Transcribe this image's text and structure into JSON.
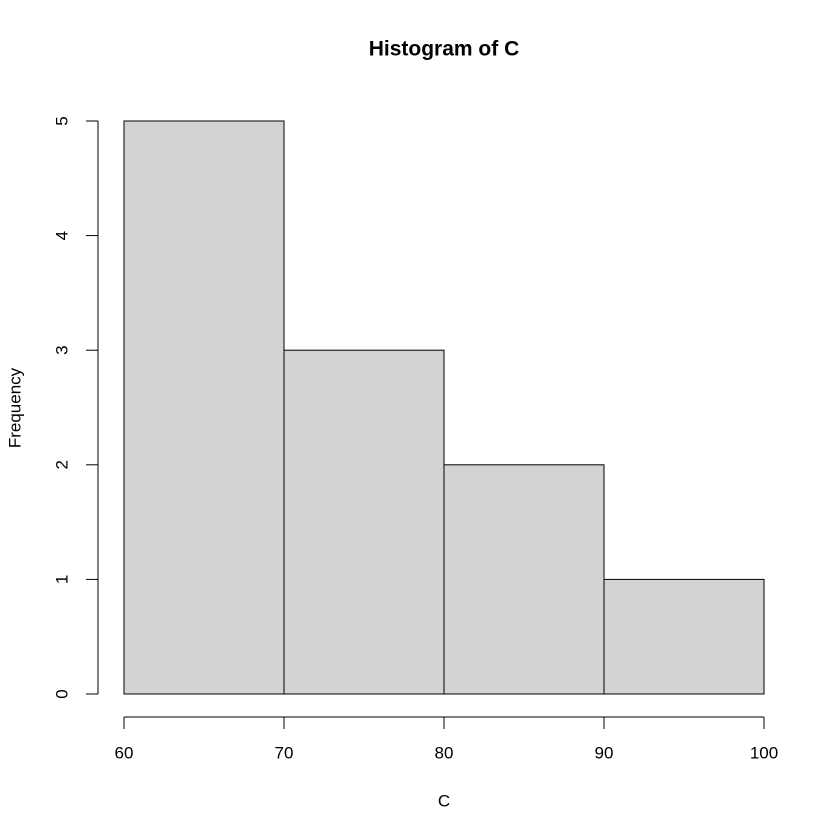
{
  "chart_data": {
    "type": "histogram",
    "title": "Histogram of C",
    "x_label": "C",
    "y_label": "Frequency",
    "bins": [
      60,
      70,
      80,
      90,
      100
    ],
    "counts": [
      5,
      3,
      2,
      1
    ],
    "color": "#d3d3d3",
    "xlim": [
      60,
      100
    ],
    "xticks": [
      60,
      70,
      80,
      90,
      100
    ],
    "ylim": [
      0,
      5
    ],
    "yticks": [
      0,
      1,
      2,
      3,
      4,
      5
    ]
  }
}
